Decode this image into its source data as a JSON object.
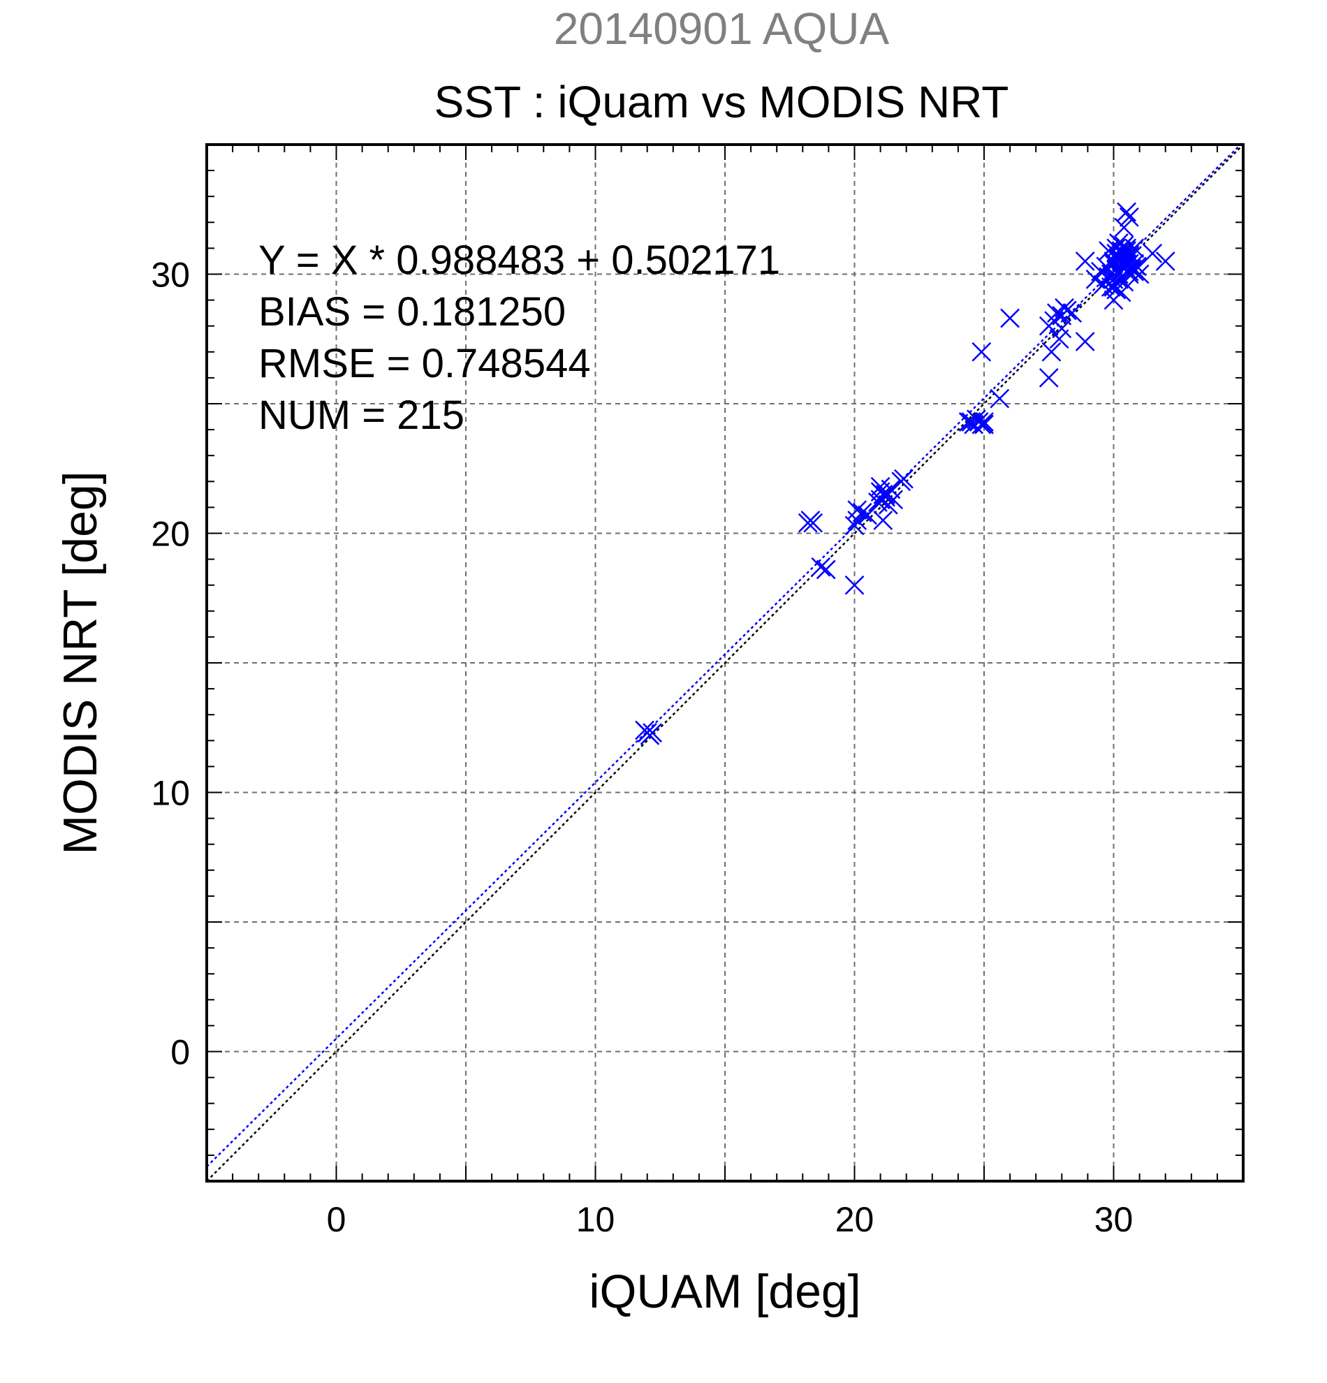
{
  "chart_data": {
    "type": "scatter",
    "subtitle": "20140901 AQUA",
    "title": "SST : iQuam vs MODIS NRT",
    "xlabel": "iQUAM [deg]",
    "ylabel": "MODIS NRT [deg]",
    "xlim": [
      -5,
      35
    ],
    "ylim": [
      -5,
      35
    ],
    "x_ticks": [
      0,
      10,
      20,
      30
    ],
    "y_ticks": [
      0,
      10,
      20,
      30
    ],
    "x_tick_labels": [
      "0",
      "10",
      "20",
      "30"
    ],
    "y_tick_labels": [
      "0",
      "10",
      "20",
      "30"
    ],
    "grid": true,
    "grid_step": 5,
    "minor_step": 1,
    "stats": [
      "Y = X * 0.988483 + 0.502171",
      "BIAS = 0.181250",
      "RMSE = 0.748544",
      "NUM = 215"
    ],
    "fit": {
      "slope": 0.988483,
      "intercept": 0.502171,
      "color": "#0000ff"
    },
    "identity_line_color": "#000000",
    "marker": "x",
    "marker_color": "#0000ff",
    "series": [
      {
        "x": [
          12.0,
          11.9,
          12.1,
          12.0,
          12.2,
          18.2,
          18.3,
          18.4,
          18.7,
          18.9,
          20.0,
          20.1,
          20.3,
          20.5,
          20.0,
          20.1,
          20.9,
          21.0,
          21.1,
          21.0,
          21.2,
          21.4,
          21.5,
          21.3,
          21.1,
          21.8,
          21.9,
          21.0,
          21.2,
          24.4,
          24.5,
          24.6,
          24.8,
          24.9,
          25.0,
          24.7,
          24.4,
          24.9,
          25.6,
          25.0,
          26.0,
          27.5,
          27.6,
          27.5,
          27.7,
          27.8,
          28.0,
          28.1,
          28.2,
          28.4,
          28.0,
          27.9,
          28.9,
          28.9,
          29.3,
          29.5,
          29.6,
          29.8,
          29.7,
          29.9,
          30.0,
          30.0,
          30.1,
          30.2,
          30.3,
          30.4,
          30.5,
          30.6,
          30.7,
          30.8,
          30.9,
          30.1,
          30.2,
          30.3,
          30.4,
          30.5,
          30.6,
          30.0,
          30.1,
          30.2,
          30.3,
          30.4,
          29.9,
          30.0,
          30.5,
          30.6,
          30.7,
          30.5,
          30.6,
          30.4,
          30.8,
          31.0,
          31.5,
          32.0,
          30.2,
          30.4,
          30.6,
          30.8,
          29.8,
          30.0,
          30.1,
          30.5,
          30.3,
          30.7
        ],
        "y": [
          12.3,
          12.4,
          12.2,
          12.3,
          12.3,
          20.4,
          20.5,
          20.4,
          18.7,
          18.6,
          20.3,
          20.9,
          20.8,
          20.7,
          18.0,
          20.5,
          21.2,
          21.6,
          21.5,
          21.3,
          21.4,
          21.7,
          21.3,
          21.1,
          20.5,
          22.0,
          22.1,
          21.8,
          21.5,
          24.3,
          24.3,
          24.2,
          24.3,
          24.2,
          24.3,
          24.4,
          24.3,
          27.0,
          25.2,
          24.2,
          28.3,
          26.0,
          27.0,
          28.0,
          28.2,
          28.5,
          28.4,
          28.7,
          28.6,
          28.5,
          27.9,
          27.5,
          30.5,
          27.4,
          29.8,
          30.1,
          29.6,
          29.9,
          30.3,
          30.0,
          30.4,
          29.8,
          30.8,
          30.6,
          30.5,
          30.7,
          30.9,
          30.4,
          30.2,
          30.1,
          30.3,
          30.2,
          30.0,
          30.9,
          31.1,
          30.5,
          30.0,
          29.5,
          29.4,
          29.8,
          30.6,
          30.8,
          29.5,
          29.0,
          31.0,
          30.7,
          30.2,
          32.4,
          32.2,
          31.8,
          31.0,
          30.0,
          30.8,
          30.5,
          31.2,
          29.7,
          30.1,
          30.4,
          30.9,
          30.5,
          31.0,
          30.4,
          29.3,
          30.7
        ]
      }
    ]
  }
}
